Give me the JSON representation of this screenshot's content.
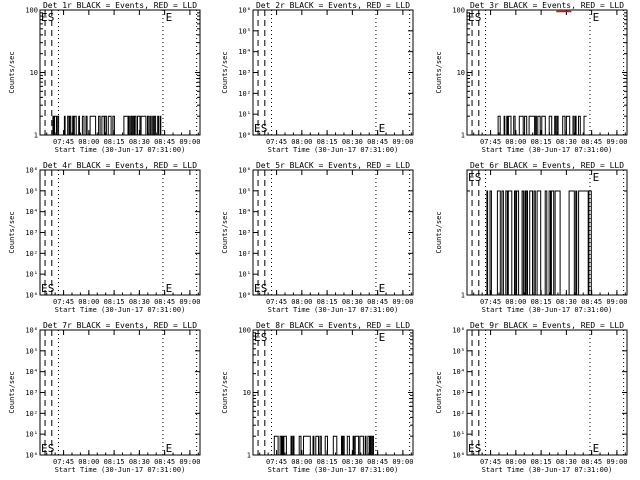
{
  "colors": {
    "events": "#000000",
    "lld": "#ff0000",
    "background": "#ffffff"
  },
  "chart_data": [
    {
      "type": "line",
      "title": "Det 1r BLACK = Events, RED = LLD",
      "xlabel": "Start Time (30-Jun-17 07:31:00)",
      "ylabel": "Counts/sec",
      "xlim": [
        "07:31",
        "09:06"
      ],
      "xticks": [
        "07:45",
        "08:00",
        "08:15",
        "08:30",
        "08:45",
        "09:00"
      ],
      "ylim": [
        1,
        100
      ],
      "yscale": "log",
      "ytick_labels": [
        "1",
        "10",
        "100"
      ],
      "dashed_markers": [
        "07:34",
        "07:38"
      ],
      "dotted_markers": [
        "07:42",
        "08:44",
        "09:04"
      ],
      "marker_letters": [
        {
          "text": "E",
          "time": "07:31",
          "pos": "top"
        },
        {
          "text": "S",
          "time": "07:35",
          "pos": "top"
        },
        {
          "text": "E",
          "time": "08:45",
          "pos": "top"
        }
      ],
      "series": [
        {
          "values_approx": {
            "range": [
              "07:38",
              "08:43"
            ],
            "levels": [
              1,
              2
            ]
          }
        }
      ]
    },
    {
      "type": "line",
      "title": "Det 2r BLACK = Events, RED = LLD",
      "xlabel": "Start Time (30-Jun-17 07:31:00)",
      "ylabel": "Counts/sec",
      "xlim": [
        "07:31",
        "09:06"
      ],
      "xticks": [
        "07:45",
        "08:00",
        "08:15",
        "08:30",
        "08:45",
        "09:00"
      ],
      "ylim": [
        1,
        1000000
      ],
      "yscale": "log",
      "ytick_labels": [
        "10⁰",
        "10¹",
        "10²",
        "10³",
        "10⁴",
        "10⁵",
        "10⁶"
      ],
      "dashed_markers": [
        "07:34",
        "07:38"
      ],
      "dotted_markers": [
        "07:42",
        "08:44",
        "09:04"
      ],
      "marker_letters": [
        {
          "text": "E",
          "time": "07:31",
          "pos": "bottom"
        },
        {
          "text": "S",
          "time": "07:35",
          "pos": "bottom"
        },
        {
          "text": "E",
          "time": "08:45",
          "pos": "bottom"
        }
      ],
      "series": []
    },
    {
      "type": "line",
      "title": "Det 3r BLACK = Events, RED = LLD",
      "xlabel": "Start Time (30-Jun-17 07:31:00)",
      "ylabel": "Counts/sec",
      "xlim": [
        "07:31",
        "09:06"
      ],
      "xticks": [
        "07:45",
        "08:00",
        "08:15",
        "08:30",
        "08:45",
        "09:00"
      ],
      "ylim": [
        1,
        100
      ],
      "yscale": "log",
      "ytick_labels": [
        "1",
        "10",
        "100"
      ],
      "dashed_markers": [
        "07:34",
        "07:38"
      ],
      "dotted_markers": [
        "07:42",
        "08:44",
        "09:04"
      ],
      "marker_letters": [
        {
          "text": "E",
          "time": "07:31",
          "pos": "top"
        },
        {
          "text": "S",
          "time": "07:35",
          "pos": "top"
        },
        {
          "text": "E",
          "time": "08:45",
          "pos": "top"
        }
      ],
      "series": [
        {
          "values_approx": {
            "range": [
              "07:49",
              "08:42"
            ],
            "levels": [
              1,
              2
            ]
          }
        }
      ],
      "lld_series_approx": {
        "range": [
          "08:24",
          "08:33"
        ],
        "level": 100
      }
    },
    {
      "type": "line",
      "title": "Det 4r BLACK = Events, RED = LLD",
      "xlabel": "Start Time (30-Jun-17 07:31:00)",
      "ylabel": "Counts/sec",
      "xlim": [
        "07:31",
        "09:06"
      ],
      "xticks": [
        "07:45",
        "08:00",
        "08:15",
        "08:30",
        "08:45",
        "09:00"
      ],
      "ylim": [
        1,
        1000000
      ],
      "yscale": "log",
      "ytick_labels": [
        "10⁰",
        "10¹",
        "10²",
        "10³",
        "10⁴",
        "10⁵",
        "10⁶"
      ],
      "dashed_markers": [
        "07:34",
        "07:38"
      ],
      "dotted_markers": [
        "07:42",
        "08:44",
        "09:04"
      ],
      "marker_letters": [
        {
          "text": "E",
          "time": "07:31",
          "pos": "bottom"
        },
        {
          "text": "S",
          "time": "07:35",
          "pos": "bottom"
        },
        {
          "text": "E",
          "time": "08:45",
          "pos": "bottom"
        }
      ],
      "series": []
    },
    {
      "type": "line",
      "title": "Det 5r BLACK = Events, RED = LLD",
      "xlabel": "Start Time (30-Jun-17 07:31:00)",
      "ylabel": "Counts/sec",
      "xlim": [
        "07:31",
        "09:06"
      ],
      "xticks": [
        "07:45",
        "08:00",
        "08:15",
        "08:30",
        "08:45",
        "09:00"
      ],
      "ylim": [
        1,
        1000000
      ],
      "yscale": "log",
      "ytick_labels": [
        "10⁰",
        "10¹",
        "10²",
        "10³",
        "10⁴",
        "10⁵",
        "10⁶"
      ],
      "dashed_markers": [
        "07:34",
        "07:38"
      ],
      "dotted_markers": [
        "07:42",
        "08:44",
        "09:04"
      ],
      "marker_letters": [
        {
          "text": "E",
          "time": "07:31",
          "pos": "bottom"
        },
        {
          "text": "S",
          "time": "07:35",
          "pos": "bottom"
        },
        {
          "text": "E",
          "time": "08:45",
          "pos": "bottom"
        }
      ],
      "series": []
    },
    {
      "type": "line",
      "title": "Det 6r BLACK = Events, RED = LLD",
      "xlabel": "Start Time (30-Jun-17 07:31:00)",
      "ylabel": "Counts/sec",
      "xlim": [
        "07:31",
        "09:06"
      ],
      "xticks": [
        "07:45",
        "08:00",
        "08:15",
        "08:30",
        "08:45",
        "09:00"
      ],
      "ylim": [
        1,
        2.3
      ],
      "yscale": "log",
      "ytick_labels": [
        "1"
      ],
      "dashed_markers": [
        "07:34",
        "07:38"
      ],
      "dotted_markers": [
        "07:42",
        "08:44",
        "09:04"
      ],
      "marker_letters": [
        {
          "text": "E",
          "time": "07:31",
          "pos": "top"
        },
        {
          "text": "S",
          "time": "07:35",
          "pos": "top"
        },
        {
          "text": "E",
          "time": "08:45",
          "pos": "top"
        }
      ],
      "series": [
        {
          "values_approx": {
            "range": [
              "07:40",
              "08:46"
            ],
            "levels": [
              1,
              2
            ]
          }
        }
      ]
    },
    {
      "type": "line",
      "title": "Det 7r BLACK = Events, RED = LLD",
      "xlabel": "Start Time (30-Jun-17 07:31:00)",
      "ylabel": "Counts/sec",
      "xlim": [
        "07:31",
        "09:06"
      ],
      "xticks": [
        "07:45",
        "08:00",
        "08:15",
        "08:30",
        "08:45",
        "09:00"
      ],
      "ylim": [
        1,
        1000000
      ],
      "yscale": "log",
      "ytick_labels": [
        "10⁰",
        "10¹",
        "10²",
        "10³",
        "10⁴",
        "10⁵",
        "10⁶"
      ],
      "dashed_markers": [
        "07:34",
        "07:38"
      ],
      "dotted_markers": [
        "07:42",
        "08:44",
        "09:04"
      ],
      "marker_letters": [
        {
          "text": "E",
          "time": "07:31",
          "pos": "bottom"
        },
        {
          "text": "S",
          "time": "07:35",
          "pos": "bottom"
        },
        {
          "text": "E",
          "time": "08:45",
          "pos": "bottom"
        }
      ],
      "series": []
    },
    {
      "type": "line",
      "title": "Det 8r BLACK = Events, RED = LLD",
      "xlabel": "Start Time (30-Jun-17 07:31:00)",
      "ylabel": "Counts/sec",
      "xlim": [
        "07:31",
        "09:06"
      ],
      "xticks": [
        "07:45",
        "08:00",
        "08:15",
        "08:30",
        "08:45",
        "09:00"
      ],
      "ylim": [
        1,
        100
      ],
      "yscale": "log",
      "ytick_labels": [
        "1",
        "10",
        "100"
      ],
      "dashed_markers": [
        "07:34",
        "07:38"
      ],
      "dotted_markers": [
        "07:42",
        "08:44",
        "09:04"
      ],
      "marker_letters": [
        {
          "text": "E",
          "time": "07:31",
          "pos": "top"
        },
        {
          "text": "S",
          "time": "07:35",
          "pos": "top"
        },
        {
          "text": "E",
          "time": "08:45",
          "pos": "top"
        }
      ],
      "series": [
        {
          "values_approx": {
            "range": [
              "07:42",
              "08:43"
            ],
            "levels": [
              1,
              2
            ]
          }
        }
      ]
    },
    {
      "type": "line",
      "title": "Det 9r BLACK = Events, RED = LLD",
      "xlabel": "Start Time (30-Jun-17 07:31:00)",
      "ylabel": "Counts/sec",
      "xlim": [
        "07:31",
        "09:06"
      ],
      "xticks": [
        "07:45",
        "08:00",
        "08:15",
        "08:30",
        "08:45",
        "09:00"
      ],
      "ylim": [
        1,
        1000000
      ],
      "yscale": "log",
      "ytick_labels": [
        "10⁰",
        "10¹",
        "10²",
        "10³",
        "10⁴",
        "10⁵",
        "10⁶"
      ],
      "dashed_markers": [
        "07:34",
        "07:38"
      ],
      "dotted_markers": [
        "07:42",
        "08:44",
        "09:04"
      ],
      "marker_letters": [
        {
          "text": "E",
          "time": "07:31",
          "pos": "bottom"
        },
        {
          "text": "S",
          "time": "07:35",
          "pos": "bottom"
        },
        {
          "text": "E",
          "time": "08:45",
          "pos": "bottom"
        }
      ],
      "series": []
    }
  ]
}
